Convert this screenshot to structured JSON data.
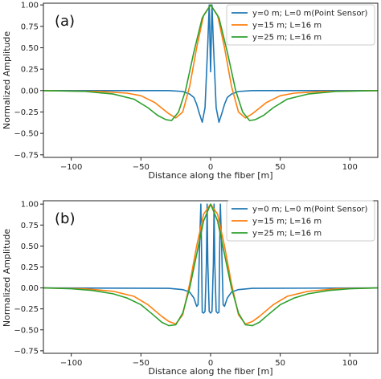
{
  "chart_data": [
    {
      "type": "line",
      "panel_label": "(a)",
      "xlabel": "Distance along the fiber [m]",
      "ylabel": "Normalized Amplitude",
      "xlim": [
        -120,
        120
      ],
      "ylim": [
        -0.78,
        1.02
      ],
      "xticks": [
        -100,
        -50,
        0,
        50,
        100
      ],
      "yticks": [
        -0.75,
        -0.5,
        -0.25,
        0.0,
        0.25,
        0.5,
        0.75,
        1.0
      ],
      "ytick_labels": [
        "−0.75",
        "−0.50",
        "−0.25",
        "0.00",
        "0.25",
        "0.50",
        "0.75",
        "1.00"
      ],
      "xtick_labels": [
        "−100",
        "−50",
        "0",
        "50",
        "100"
      ],
      "legend_position": "top-right",
      "grid": false,
      "series": [
        {
          "name": "y=0 m; L=0 m(Point Sensor)",
          "color": "#1f77b4",
          "x": [
            -120,
            -30,
            -20,
            -15,
            -12,
            -10,
            -8,
            -6,
            -4,
            -2,
            -1,
            0,
            1,
            2,
            4,
            6,
            8,
            10,
            12,
            15,
            20,
            30,
            120
          ],
          "y": [
            0,
            0,
            -0.01,
            -0.04,
            -0.08,
            -0.16,
            -0.27,
            -0.37,
            -0.2,
            0.55,
            1.0,
            0.22,
            1.0,
            0.55,
            -0.2,
            -0.37,
            -0.27,
            -0.16,
            -0.08,
            -0.04,
            -0.01,
            0,
            0
          ]
        },
        {
          "name": "y=15 m; L=16 m",
          "color": "#ff7f0e",
          "x": [
            -120,
            -80,
            -60,
            -50,
            -40,
            -30,
            -25,
            -20,
            -15,
            -10,
            -5,
            0,
            5,
            10,
            15,
            20,
            25,
            30,
            40,
            50,
            60,
            80,
            120
          ],
          "y": [
            0,
            -0.01,
            -0.03,
            -0.06,
            -0.14,
            -0.27,
            -0.32,
            -0.25,
            0.05,
            0.5,
            0.88,
            1.0,
            0.88,
            0.5,
            0.05,
            -0.25,
            -0.32,
            -0.27,
            -0.14,
            -0.06,
            -0.03,
            -0.01,
            0
          ]
        },
        {
          "name": "y=25 m; L=16 m",
          "color": "#2ca02c",
          "x": [
            -120,
            -90,
            -70,
            -55,
            -45,
            -38,
            -32,
            -28,
            -23,
            -18,
            -12,
            -6,
            0,
            6,
            12,
            18,
            23,
            28,
            32,
            38,
            45,
            55,
            70,
            90,
            120
          ],
          "y": [
            0,
            -0.01,
            -0.04,
            -0.1,
            -0.2,
            -0.29,
            -0.34,
            -0.35,
            -0.25,
            0.0,
            0.45,
            0.85,
            1.0,
            0.85,
            0.45,
            0.0,
            -0.25,
            -0.35,
            -0.34,
            -0.29,
            -0.2,
            -0.1,
            -0.04,
            -0.01,
            0
          ]
        }
      ]
    },
    {
      "type": "line",
      "panel_label": "(b)",
      "xlabel": "Distance along the fiber [m]",
      "ylabel": "Normalized Amplitude",
      "xlim": [
        -120,
        120
      ],
      "ylim": [
        -0.78,
        1.04
      ],
      "xticks": [
        -100,
        -50,
        0,
        50,
        100
      ],
      "yticks": [
        -0.75,
        -0.5,
        -0.25,
        0.0,
        0.25,
        0.5,
        0.75,
        1.0
      ],
      "ytick_labels": [
        "−0.75",
        "−0.50",
        "−0.25",
        "0.00",
        "0.25",
        "0.50",
        "0.75",
        "1.00"
      ],
      "xtick_labels": [
        "−100",
        "−50",
        "0",
        "50",
        "100"
      ],
      "legend_position": "top-right",
      "grid": false,
      "series": [
        {
          "name": "y=0 m; L=0 m(Point Sensor)",
          "color": "#1f77b4",
          "x": [
            -120,
            -30,
            -20,
            -15,
            -12,
            -10,
            -9,
            -8,
            -7,
            -6.5,
            -6,
            -5,
            -4,
            -3,
            -2.5,
            -2,
            -1,
            0,
            1,
            2,
            2.5,
            3,
            4,
            5,
            6,
            6.5,
            7,
            8,
            9,
            10,
            12,
            15,
            20,
            30,
            120
          ],
          "y": [
            0,
            -0.005,
            -0.02,
            -0.05,
            -0.12,
            -0.22,
            -0.2,
            0.45,
            1.0,
            0.45,
            -0.29,
            -0.3,
            -0.28,
            0.3,
            1.0,
            0.3,
            -0.28,
            -0.3,
            -0.28,
            0.3,
            1.0,
            0.3,
            -0.28,
            -0.3,
            -0.29,
            0.45,
            1.0,
            0.45,
            -0.2,
            -0.22,
            -0.12,
            -0.05,
            -0.02,
            -0.005,
            0
          ]
        },
        {
          "name": "y=15 m; L=16 m",
          "color": "#ff7f0e",
          "x": [
            -120,
            -90,
            -70,
            -55,
            -45,
            -35,
            -30,
            -25,
            -20,
            -15,
            -10,
            -5,
            0,
            5,
            10,
            15,
            20,
            25,
            30,
            35,
            45,
            55,
            70,
            90,
            120
          ],
          "y": [
            0,
            -0.01,
            -0.04,
            -0.1,
            -0.2,
            -0.34,
            -0.4,
            -0.43,
            -0.32,
            0.05,
            0.5,
            0.88,
            1.0,
            0.88,
            0.5,
            0.05,
            -0.32,
            -0.43,
            -0.4,
            -0.34,
            -0.2,
            -0.1,
            -0.04,
            -0.01,
            0
          ]
        },
        {
          "name": "y=25 m; L=16 m",
          "color": "#2ca02c",
          "x": [
            -120,
            -100,
            -85,
            -70,
            -60,
            -50,
            -42,
            -35,
            -30,
            -25,
            -20,
            -15,
            -10,
            -5,
            0,
            5,
            10,
            15,
            20,
            25,
            30,
            35,
            42,
            50,
            60,
            70,
            85,
            100,
            120
          ],
          "y": [
            0,
            -0.01,
            -0.03,
            -0.07,
            -0.12,
            -0.2,
            -0.31,
            -0.41,
            -0.45,
            -0.44,
            -0.3,
            0.0,
            0.4,
            0.8,
            1.0,
            0.8,
            0.4,
            0.0,
            -0.3,
            -0.44,
            -0.45,
            -0.41,
            -0.31,
            -0.2,
            -0.12,
            -0.07,
            -0.03,
            -0.01,
            0
          ]
        }
      ]
    }
  ]
}
